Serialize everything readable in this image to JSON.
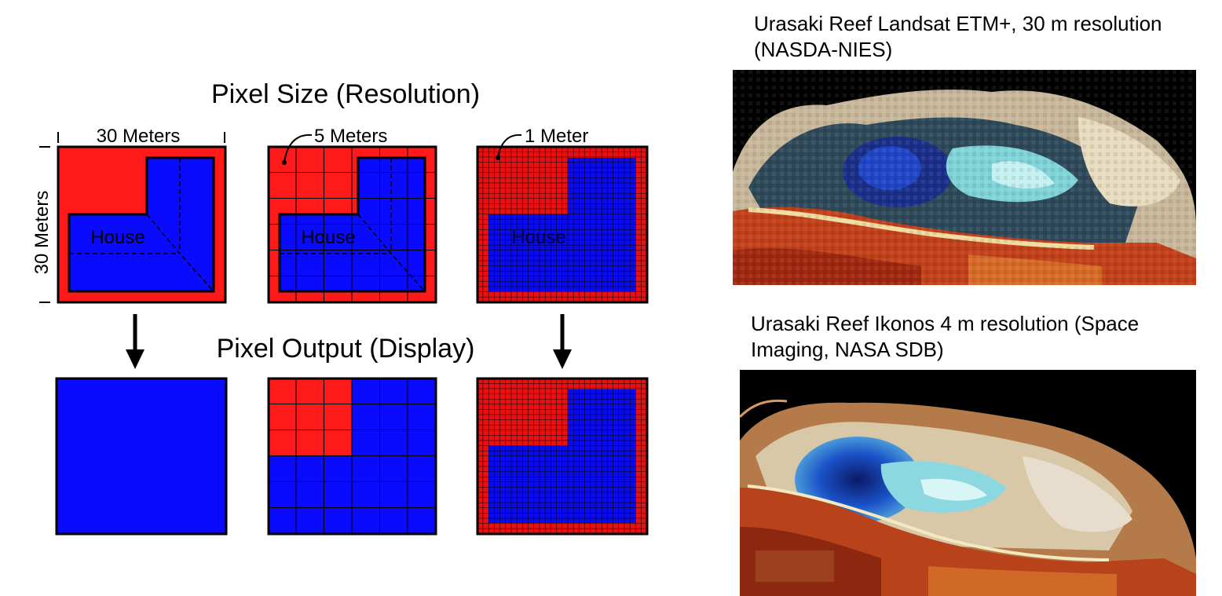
{
  "diagram": {
    "title": "Pixel Size (Resolution)",
    "subtitle": "Pixel Output (Display)",
    "scale_top_label": "30 Meters",
    "scale_side_label": "30 Meters",
    "panels": [
      {
        "label": "30 Meters",
        "grid_cells": 1,
        "output_cells": 1
      },
      {
        "label": "5 Meters",
        "grid_cells": 6,
        "output_cells": 6
      },
      {
        "label": "1 Meter",
        "grid_cells": 30,
        "output_cells": 30
      }
    ],
    "house_label": "House",
    "colors": {
      "ground": "#ff1a1a",
      "house": "#0a0aff",
      "outline": "#000000"
    }
  },
  "images": [
    {
      "caption": "Urasaki Reef  Landsat ETM+, 30 m resolution (NASDA-NIES)",
      "subject": "satellite image of reef, coarse pixels"
    },
    {
      "caption": "Urasaki Reef Ikonos 4 m resolution (Space Imaging, NASA SDB)",
      "subject": "satellite image of reef, fine detail"
    }
  ]
}
